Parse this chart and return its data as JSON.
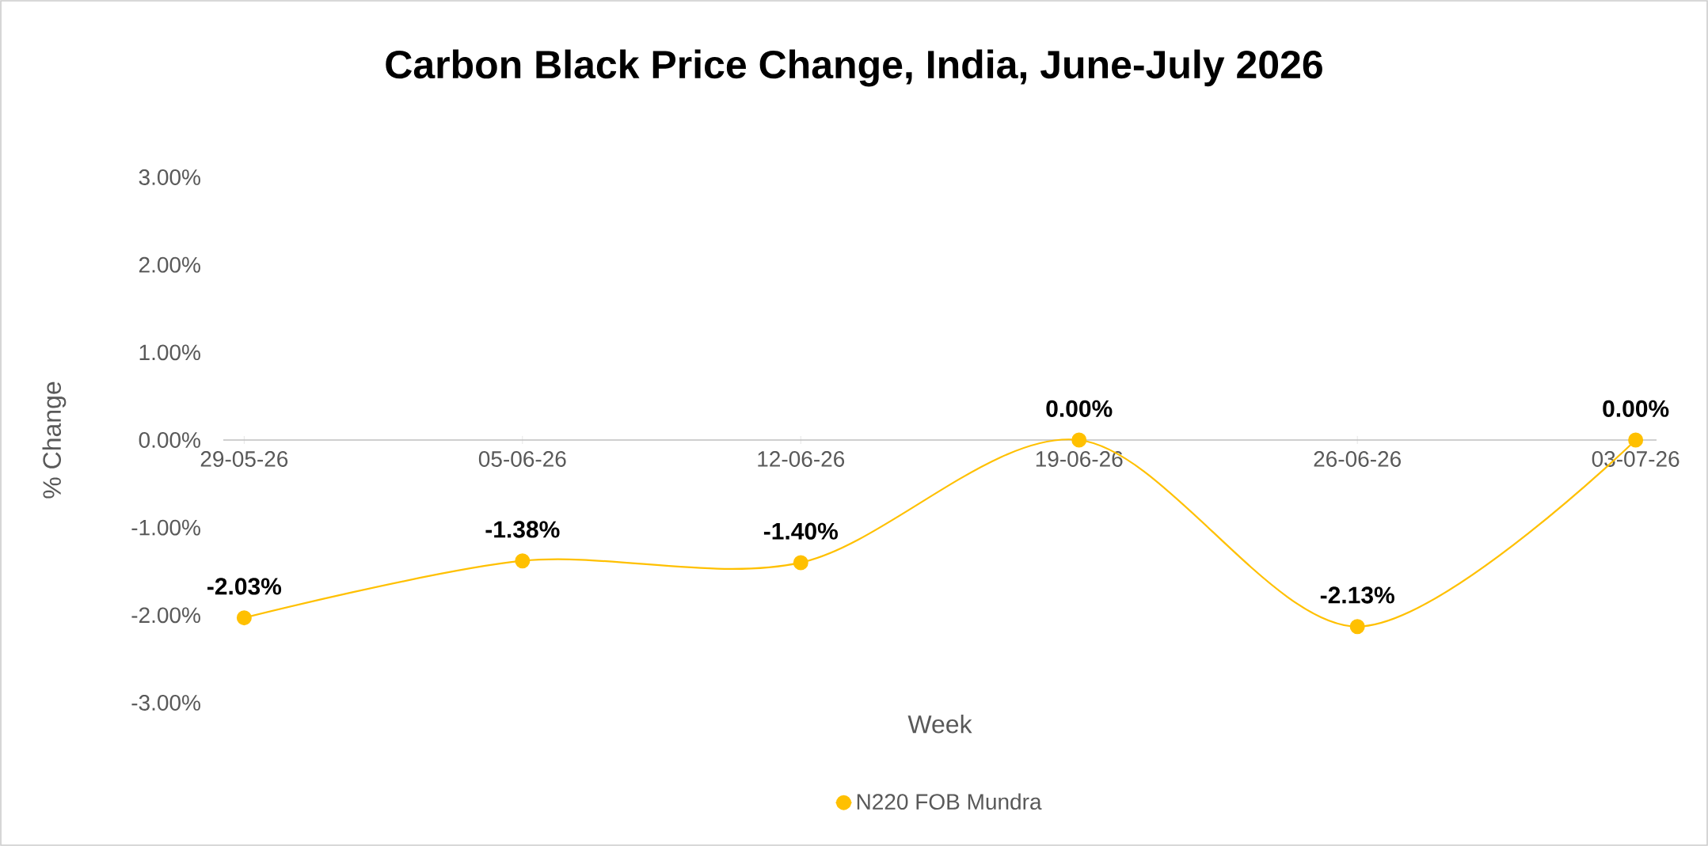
{
  "chart_data": {
    "type": "line",
    "title": "Carbon Black Price Change, India, June-July 2026",
    "xlabel": "Week",
    "ylabel": "% Change",
    "categories": [
      "29-05-26",
      "05-06-26",
      "12-06-26",
      "19-06-26",
      "26-06-26",
      "03-07-26"
    ],
    "series": [
      {
        "name": "N220 FOB Mundra",
        "color": "#ffc000",
        "values": [
          -2.03,
          -1.38,
          -1.4,
          0.0,
          -2.13,
          0.0
        ],
        "value_labels": [
          "-2.03%",
          "-1.38%",
          "-1.40%",
          "0.00%",
          "-2.13%",
          "0.00%"
        ]
      }
    ],
    "ylim": [
      -3,
      3
    ],
    "yticks": [
      {
        "value": -3,
        "label": "-3.00%"
      },
      {
        "value": -2,
        "label": "-2.00%"
      },
      {
        "value": -1,
        "label": "-1.00%"
      },
      {
        "value": 0,
        "label": "0.00%"
      },
      {
        "value": 1,
        "label": "1.00%"
      },
      {
        "value": 2,
        "label": "2.00%"
      },
      {
        "value": 3,
        "label": "3.00%"
      }
    ],
    "marker": "circle",
    "line_style": "solid",
    "legend": "bottom"
  }
}
